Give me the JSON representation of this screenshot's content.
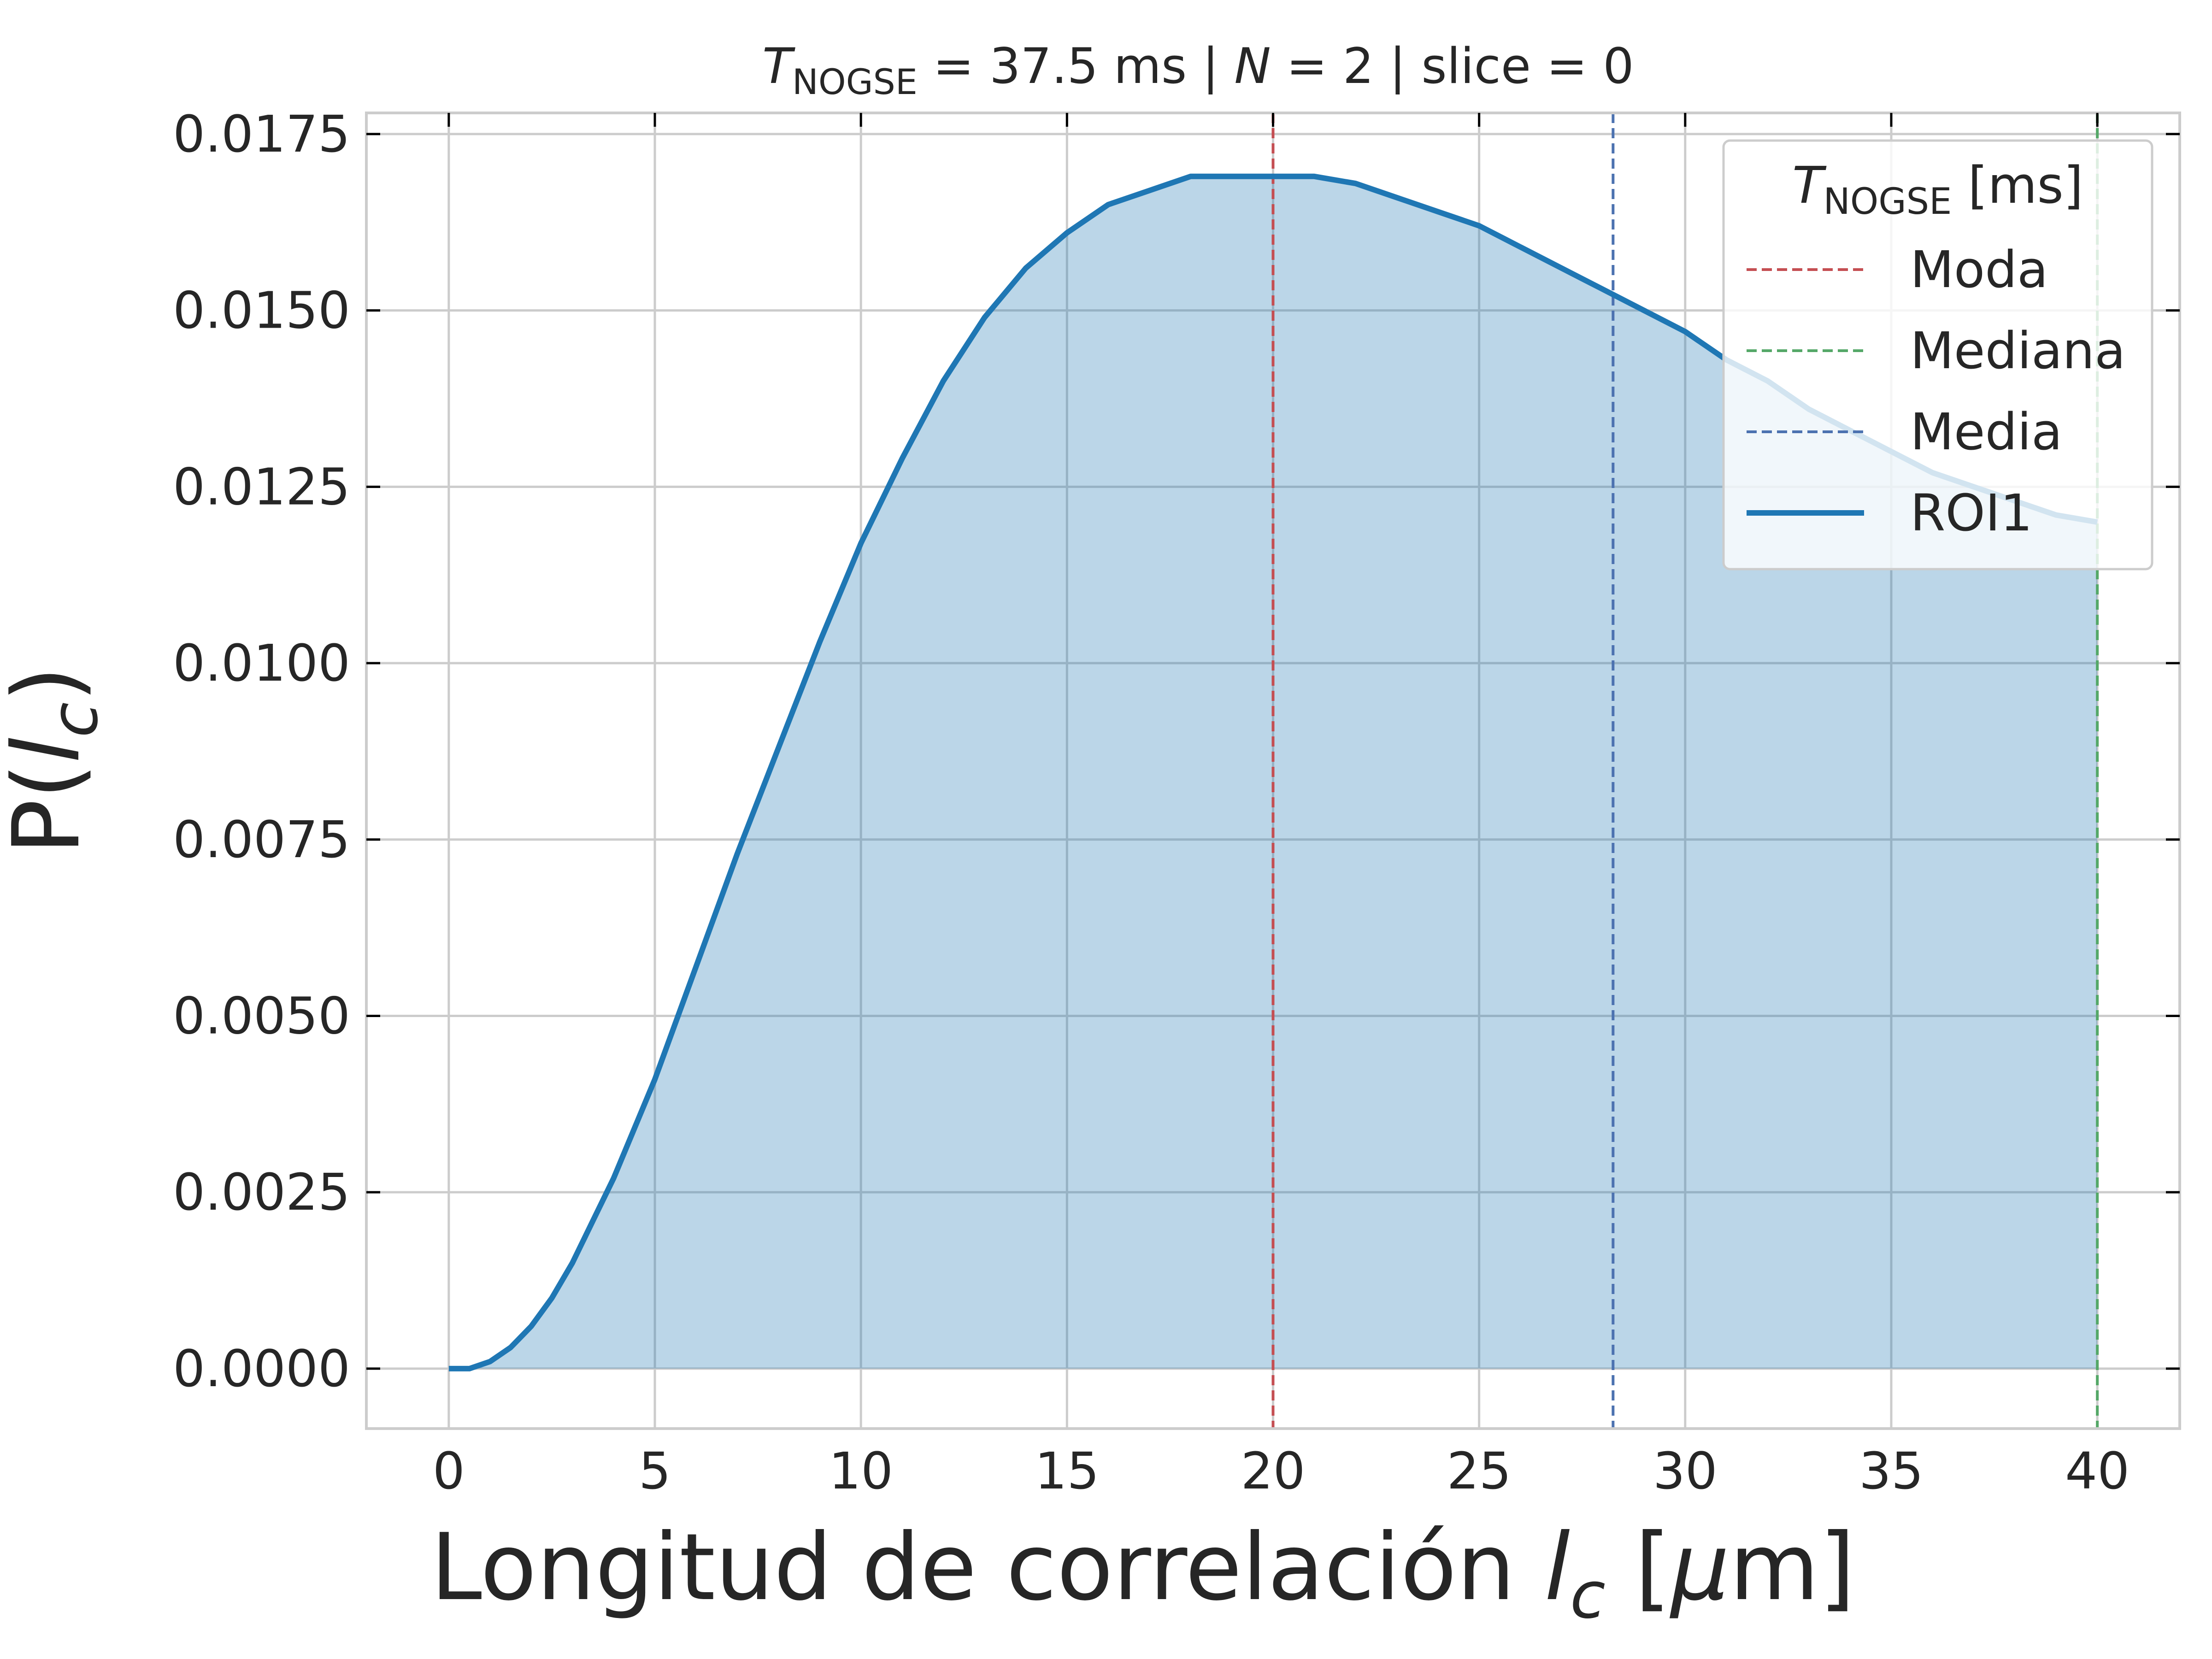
{
  "chart_data": {
    "type": "area",
    "title": {
      "symbol": "T",
      "subscript": "NOGSE",
      "rest": " = 37.5 ms | ",
      "n_symbol": "N",
      "n_rest": " = 2 | slice = 0"
    },
    "xlabel": {
      "text": "Longitud de correlación ",
      "symbol": "l",
      "subscript": "c",
      "unit_open": " [",
      "unit_mu": "μ",
      "unit_rest": "m]"
    },
    "ylabel": {
      "prefix": "P(",
      "symbol": "l",
      "subscript": "c",
      "suffix": ")"
    },
    "xlim": [
      -2,
      42
    ],
    "ylim": [
      -0.00085,
      0.0178
    ],
    "xticks": [
      "0",
      "5",
      "10",
      "15",
      "20",
      "25",
      "30",
      "35",
      "40"
    ],
    "xtick_values": [
      0,
      5,
      10,
      15,
      20,
      25,
      30,
      35,
      40
    ],
    "yticks": [
      "0.0000",
      "0.0025",
      "0.0050",
      "0.0075",
      "0.0100",
      "0.0125",
      "0.0150",
      "0.0175"
    ],
    "ytick_values": [
      0,
      0.0025,
      0.005,
      0.0075,
      0.01,
      0.0125,
      0.015,
      0.0175
    ],
    "grid": true,
    "series": [
      {
        "name": "ROI1",
        "color": "#1f77b4",
        "fill_color": "#1f77b4",
        "fill_opacity": 0.3,
        "x": [
          0,
          0.5,
          1,
          1.5,
          2,
          2.5,
          3,
          3.5,
          4,
          5,
          6,
          7,
          8,
          9,
          10,
          11,
          12,
          13,
          14,
          15,
          16,
          17,
          18,
          19,
          20,
          21,
          22,
          23,
          24,
          25,
          26,
          27,
          28,
          29,
          30,
          31,
          32,
          33,
          34,
          35,
          36,
          37,
          38,
          39,
          40
        ],
        "y": [
          0,
          0.0,
          0.0001,
          0.0003,
          0.0006,
          0.001,
          0.0015,
          0.0021,
          0.0027,
          0.0041,
          0.0057,
          0.0073,
          0.0088,
          0.0103,
          0.0117,
          0.0129,
          0.014,
          0.0149,
          0.0156,
          0.0161,
          0.0165,
          0.0167,
          0.0169,
          0.0169,
          0.0169,
          0.0169,
          0.0168,
          0.0166,
          0.0164,
          0.0162,
          0.0159,
          0.0156,
          0.0153,
          0.015,
          0.0147,
          0.0143,
          0.014,
          0.0136,
          0.0133,
          0.013,
          0.0127,
          0.0125,
          0.0123,
          0.0121,
          0.012
        ]
      }
    ],
    "vlines": [
      {
        "name": "Moda",
        "x": 20.0,
        "color": "#c44e52"
      },
      {
        "name": "Mediana",
        "x": 40.0,
        "color": "#55a868"
      },
      {
        "name": "Media",
        "x": 28.25,
        "color": "#4c72b0"
      }
    ],
    "legend": {
      "placement": "top-right",
      "title": {
        "symbol": "T",
        "subscript": "NOGSE",
        "rest": " [ms]"
      },
      "entries": [
        {
          "label": "Moda",
          "color": "#c44e52",
          "style": "dashed"
        },
        {
          "label": "Mediana",
          "color": "#55a868",
          "style": "dashed"
        },
        {
          "label": "Media",
          "color": "#4c72b0",
          "style": "dashed"
        },
        {
          "label": "ROI1",
          "color": "#1f77b4",
          "style": "solid"
        }
      ]
    },
    "colors": {
      "grid": "#cccccc",
      "frame": "#cccccc",
      "text": "#262626",
      "tick": "#000000"
    }
  }
}
